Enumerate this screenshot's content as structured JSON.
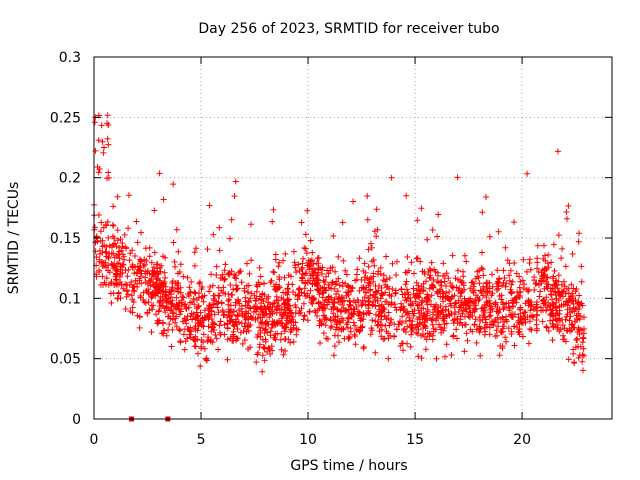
{
  "chart_data": {
    "type": "scatter",
    "title": "Day 256 of 2023, SRMTID for receiver tubo",
    "xlabel": "GPS time / hours",
    "ylabel": "SRMTID / TECUs",
    "xlim": [
      0,
      24.2
    ],
    "ylim": [
      0,
      0.3
    ],
    "xticks": [
      0,
      5,
      10,
      15,
      20
    ],
    "xtick_labels": [
      "0",
      "5",
      "10",
      "15",
      "20"
    ],
    "yticks": [
      0,
      0.05,
      0.1,
      0.15,
      0.2,
      0.25,
      0.3
    ],
    "ytick_labels": [
      "0",
      "0.05",
      "0.1",
      "0.15",
      "0.2",
      "0.25",
      "0.3"
    ],
    "grid": true,
    "series": [
      {
        "name": "SRMTID",
        "marker": "+",
        "color": "#ff0000",
        "x_range": [
          0.0,
          22.9
        ],
        "y_typical_range": [
          0.04,
          0.2
        ],
        "y_peak": 0.258,
        "profile": [
          {
            "hour": 0.0,
            "center": 0.145
          },
          {
            "hour": 1.0,
            "center": 0.125
          },
          {
            "hour": 2.0,
            "center": 0.115
          },
          {
            "hour": 3.0,
            "center": 0.105
          },
          {
            "hour": 4.0,
            "center": 0.095
          },
          {
            "hour": 5.0,
            "center": 0.082
          },
          {
            "hour": 6.0,
            "center": 0.09
          },
          {
            "hour": 7.0,
            "center": 0.09
          },
          {
            "hour": 8.0,
            "center": 0.085
          },
          {
            "hour": 9.0,
            "center": 0.09
          },
          {
            "hour": 10.0,
            "center": 0.12
          },
          {
            "hour": 11.0,
            "center": 0.095
          },
          {
            "hour": 12.0,
            "center": 0.09
          },
          {
            "hour": 13.0,
            "center": 0.1
          },
          {
            "hour": 14.0,
            "center": 0.09
          },
          {
            "hour": 15.0,
            "center": 0.095
          },
          {
            "hour": 16.0,
            "center": 0.095
          },
          {
            "hour": 17.0,
            "center": 0.09
          },
          {
            "hour": 18.0,
            "center": 0.095
          },
          {
            "hour": 19.0,
            "center": 0.09
          },
          {
            "hour": 20.0,
            "center": 0.095
          },
          {
            "hour": 21.0,
            "center": 0.11
          },
          {
            "hour": 22.0,
            "center": 0.09
          },
          {
            "hour": 22.9,
            "center": 0.075
          }
        ],
        "point_count": 2400
      },
      {
        "name": "data-gap markers",
        "marker": "square",
        "color": "#cc0000",
        "x": [
          1.75,
          3.45
        ],
        "y": [
          0,
          0
        ]
      }
    ]
  }
}
